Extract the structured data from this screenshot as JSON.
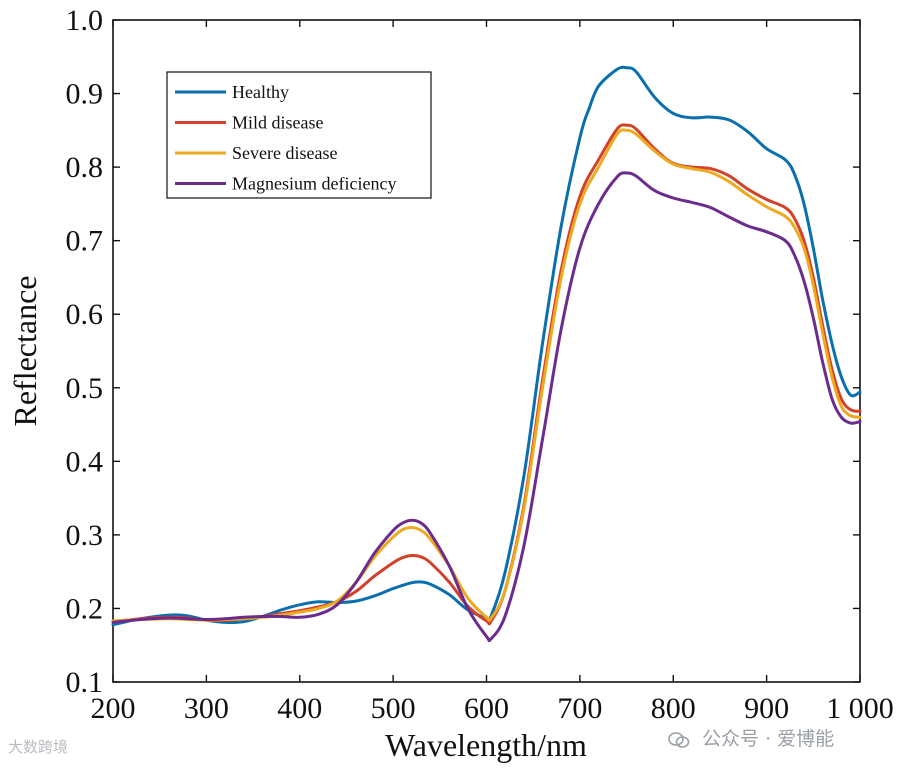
{
  "chart_data": {
    "type": "line",
    "title": "",
    "xlabel": "Wavelength/nm",
    "ylabel": "Reflectance",
    "xlim": [
      200,
      1000
    ],
    "ylim": [
      0.1,
      1.0
    ],
    "xticks": [
      200,
      300,
      400,
      500,
      600,
      700,
      800,
      900,
      1000
    ],
    "xtick_labels": [
      "200",
      "300",
      "400",
      "500",
      "600",
      "700",
      "800",
      "900",
      "1 000"
    ],
    "yticks": [
      0.1,
      0.2,
      0.3,
      0.4,
      0.5,
      0.6,
      0.7,
      0.8,
      0.9,
      1.0
    ],
    "ytick_labels": [
      "0.1",
      "0.2",
      "0.3",
      "0.4",
      "0.5",
      "0.6",
      "0.7",
      "0.8",
      "0.9",
      "1.0"
    ],
    "grid": false,
    "legend_position": "top-left",
    "series": [
      {
        "name": "Healthy",
        "color": "#0a6fae",
        "x": [
          200,
          230,
          260,
          280,
          300,
          320,
          340,
          360,
          380,
          400,
          420,
          440,
          460,
          480,
          500,
          520,
          530,
          540,
          560,
          580,
          600,
          605,
          620,
          640,
          660,
          680,
          700,
          710,
          720,
          740,
          750,
          760,
          780,
          800,
          820,
          840,
          860,
          880,
          900,
          920,
          930,
          940,
          950,
          960,
          970,
          980,
          990,
          1000
        ],
        "y": [
          0.178,
          0.186,
          0.191,
          0.19,
          0.184,
          0.181,
          0.182,
          0.189,
          0.198,
          0.205,
          0.209,
          0.208,
          0.21,
          0.217,
          0.227,
          0.235,
          0.236,
          0.233,
          0.219,
          0.198,
          0.187,
          0.19,
          0.25,
          0.38,
          0.56,
          0.72,
          0.84,
          0.88,
          0.91,
          0.933,
          0.935,
          0.93,
          0.895,
          0.873,
          0.867,
          0.868,
          0.864,
          0.848,
          0.825,
          0.81,
          0.79,
          0.75,
          0.69,
          0.62,
          0.56,
          0.515,
          0.49,
          0.494
        ]
      },
      {
        "name": "Mild disease",
        "color": "#d2422a",
        "x": [
          200,
          230,
          260,
          280,
          300,
          320,
          340,
          360,
          380,
          400,
          420,
          440,
          460,
          480,
          500,
          510,
          520,
          530,
          540,
          560,
          580,
          600,
          605,
          620,
          640,
          660,
          680,
          700,
          720,
          740,
          750,
          760,
          780,
          800,
          820,
          840,
          860,
          880,
          900,
          920,
          930,
          940,
          950,
          960,
          970,
          980,
          990,
          1000
        ],
        "y": [
          0.182,
          0.186,
          0.188,
          0.187,
          0.184,
          0.184,
          0.186,
          0.189,
          0.193,
          0.197,
          0.202,
          0.209,
          0.223,
          0.244,
          0.262,
          0.269,
          0.272,
          0.27,
          0.262,
          0.236,
          0.203,
          0.183,
          0.183,
          0.225,
          0.34,
          0.51,
          0.66,
          0.76,
          0.81,
          0.852,
          0.857,
          0.852,
          0.825,
          0.805,
          0.8,
          0.798,
          0.788,
          0.77,
          0.756,
          0.745,
          0.73,
          0.7,
          0.65,
          0.585,
          0.525,
          0.485,
          0.47,
          0.468
        ]
      },
      {
        "name": "Severe disease",
        "color": "#eda91f",
        "x": [
          200,
          230,
          260,
          280,
          300,
          320,
          340,
          360,
          380,
          400,
          420,
          440,
          460,
          480,
          500,
          510,
          520,
          530,
          540,
          560,
          580,
          600,
          605,
          620,
          640,
          660,
          680,
          700,
          720,
          740,
          750,
          760,
          780,
          800,
          820,
          840,
          860,
          880,
          900,
          920,
          930,
          940,
          950,
          960,
          970,
          980,
          990,
          1000
        ],
        "y": [
          0.183,
          0.185,
          0.186,
          0.185,
          0.184,
          0.185,
          0.186,
          0.188,
          0.191,
          0.195,
          0.2,
          0.21,
          0.235,
          0.27,
          0.297,
          0.307,
          0.31,
          0.306,
          0.294,
          0.258,
          0.214,
          0.188,
          0.187,
          0.225,
          0.335,
          0.5,
          0.65,
          0.75,
          0.8,
          0.845,
          0.85,
          0.845,
          0.822,
          0.804,
          0.798,
          0.793,
          0.78,
          0.762,
          0.746,
          0.733,
          0.718,
          0.69,
          0.64,
          0.575,
          0.515,
          0.475,
          0.462,
          0.46
        ]
      },
      {
        "name": "Magnesium deficiency",
        "color": "#6b2c8e",
        "x": [
          200,
          230,
          260,
          280,
          300,
          320,
          340,
          360,
          380,
          400,
          420,
          440,
          460,
          480,
          500,
          510,
          520,
          530,
          540,
          560,
          580,
          600,
          605,
          620,
          640,
          660,
          680,
          700,
          720,
          740,
          750,
          760,
          780,
          800,
          820,
          840,
          860,
          880,
          900,
          920,
          930,
          940,
          950,
          960,
          970,
          980,
          990,
          1000
        ],
        "y": [
          0.181,
          0.185,
          0.187,
          0.186,
          0.185,
          0.186,
          0.188,
          0.189,
          0.189,
          0.188,
          0.192,
          0.205,
          0.235,
          0.275,
          0.306,
          0.316,
          0.32,
          0.316,
          0.302,
          0.258,
          0.2,
          0.162,
          0.159,
          0.19,
          0.285,
          0.43,
          0.58,
          0.69,
          0.75,
          0.787,
          0.792,
          0.788,
          0.768,
          0.758,
          0.752,
          0.745,
          0.732,
          0.72,
          0.712,
          0.7,
          0.68,
          0.645,
          0.595,
          0.535,
          0.485,
          0.46,
          0.452,
          0.454
        ]
      }
    ]
  },
  "watermark": {
    "left_text": "大数跨境",
    "right_text": "公众号 · 爱博能"
  }
}
